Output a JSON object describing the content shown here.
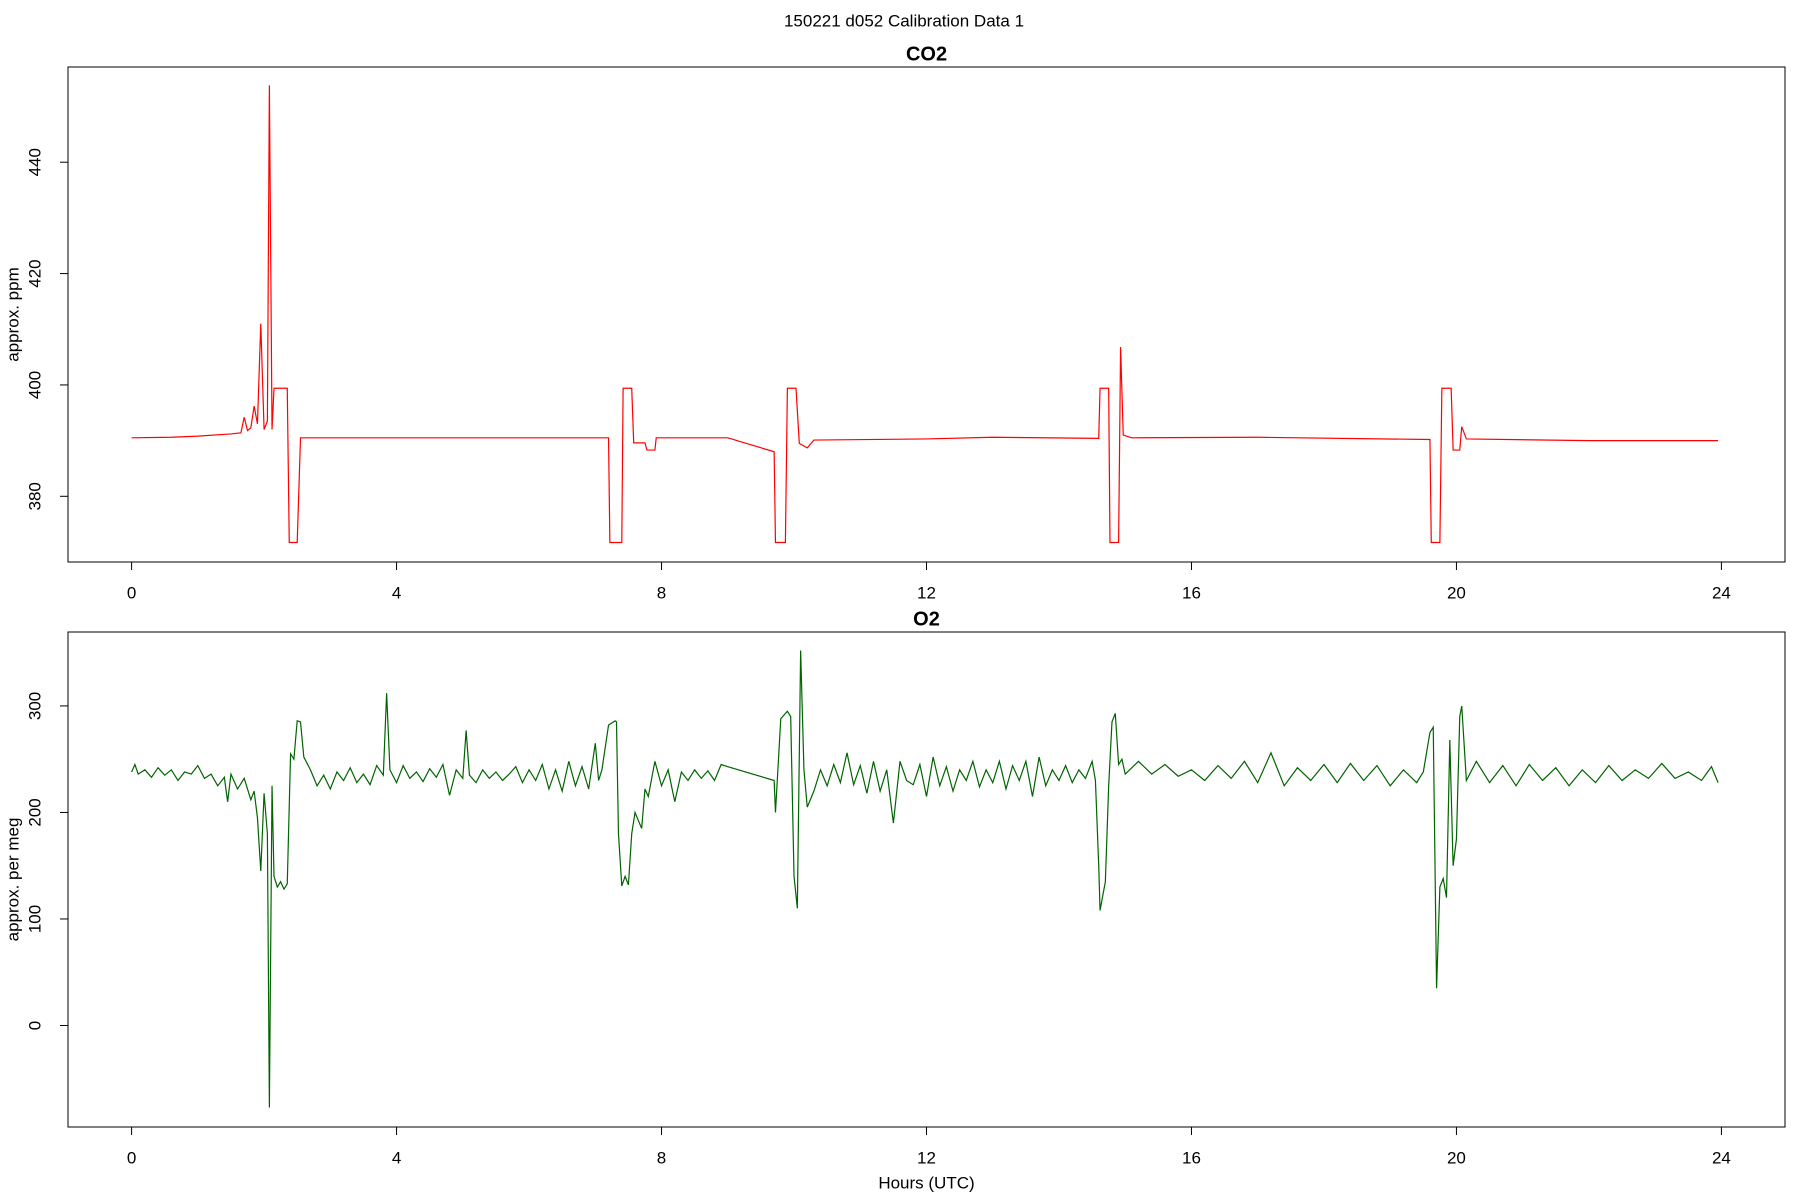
{
  "title": "150221   d052   Calibration Data 1",
  "chart_data": [
    {
      "type": "line",
      "title": "CO2",
      "ylabel": "approx. ppm",
      "color": "#ff0000",
      "xlim": [
        -0.96,
        24.96
      ],
      "xticks": [
        0,
        4,
        8,
        12,
        16,
        20,
        24
      ],
      "ylim": [
        368.2,
        457.1
      ],
      "yticks": [
        380,
        400,
        420,
        440
      ],
      "x": [
        0,
        0.6,
        1.0,
        1.5,
        1.65,
        1.7,
        1.75,
        1.8,
        1.85,
        1.9,
        1.95,
        2.0,
        2.05,
        2.08,
        2.12,
        2.15,
        2.35,
        2.38,
        2.5,
        2.55,
        4.0,
        6.0,
        7.2,
        7.22,
        7.4,
        7.42,
        7.55,
        7.58,
        7.75,
        7.78,
        7.9,
        7.92,
        9.0,
        9.7,
        9.72,
        9.87,
        9.9,
        10.03,
        10.08,
        10.2,
        10.3,
        12.0,
        13.0,
        14.6,
        14.62,
        14.75,
        14.77,
        14.9,
        14.93,
        14.97,
        15.1,
        17.0,
        19.6,
        19.62,
        19.75,
        19.78,
        19.92,
        19.95,
        20.05,
        20.08,
        20.15,
        22.0,
        23.95
      ],
      "values": [
        390.5,
        390.6,
        390.8,
        391.2,
        391.4,
        394.2,
        391.8,
        392.3,
        396.2,
        393.0,
        411.0,
        392.0,
        393.5,
        453.8,
        392.0,
        399.4,
        399.4,
        371.7,
        371.7,
        390.5,
        390.5,
        390.5,
        390.5,
        371.7,
        371.7,
        399.4,
        399.4,
        389.6,
        389.6,
        388.3,
        388.3,
        390.5,
        390.5,
        388.0,
        371.7,
        371.7,
        399.4,
        399.4,
        389.5,
        388.7,
        390.1,
        390.3,
        390.6,
        390.4,
        399.4,
        399.4,
        371.7,
        371.7,
        406.8,
        391.0,
        390.5,
        390.6,
        390.2,
        371.7,
        371.7,
        399.4,
        399.4,
        388.3,
        388.3,
        392.5,
        390.3,
        390.0,
        390.0
      ]
    },
    {
      "type": "line",
      "title": "O2",
      "ylabel": "approx. per meg",
      "xlabel": "Hours (UTC)",
      "color": "#006400",
      "xlim": [
        -0.96,
        24.96
      ],
      "xticks": [
        0,
        4,
        8,
        12,
        16,
        20,
        24
      ],
      "ylim": [
        -95.3,
        369.4
      ],
      "yticks": [
        0,
        100,
        200,
        300
      ],
      "x": [
        0,
        0.05,
        0.1,
        0.2,
        0.3,
        0.4,
        0.5,
        0.6,
        0.7,
        0.8,
        0.9,
        1.0,
        1.1,
        1.2,
        1.3,
        1.4,
        1.45,
        1.5,
        1.6,
        1.7,
        1.8,
        1.85,
        1.9,
        1.95,
        2.0,
        2.05,
        2.08,
        2.12,
        2.15,
        2.2,
        2.25,
        2.3,
        2.35,
        2.4,
        2.45,
        2.5,
        2.55,
        2.6,
        2.7,
        2.8,
        2.9,
        3.0,
        3.1,
        3.2,
        3.3,
        3.4,
        3.5,
        3.6,
        3.7,
        3.8,
        3.85,
        3.9,
        4.0,
        4.1,
        4.2,
        4.3,
        4.4,
        4.5,
        4.6,
        4.7,
        4.8,
        4.9,
        5.0,
        5.05,
        5.1,
        5.2,
        5.3,
        5.4,
        5.5,
        5.6,
        5.7,
        5.8,
        5.9,
        6.0,
        6.1,
        6.2,
        6.3,
        6.4,
        6.5,
        6.6,
        6.7,
        6.8,
        6.9,
        7.0,
        7.05,
        7.1,
        7.2,
        7.3,
        7.32,
        7.35,
        7.4,
        7.45,
        7.5,
        7.55,
        7.6,
        7.7,
        7.75,
        7.8,
        7.9,
        8.0,
        8.1,
        8.2,
        8.3,
        8.4,
        8.5,
        8.6,
        8.7,
        8.8,
        8.9,
        9.0,
        9.7,
        9.72,
        9.8,
        9.9,
        9.95,
        10.0,
        10.05,
        10.1,
        10.15,
        10.2,
        10.3,
        10.4,
        10.5,
        10.6,
        10.7,
        10.8,
        10.9,
        11.0,
        11.1,
        11.2,
        11.3,
        11.4,
        11.5,
        11.6,
        11.7,
        11.8,
        11.9,
        12.0,
        12.1,
        12.2,
        12.3,
        12.4,
        12.5,
        12.6,
        12.7,
        12.8,
        12.9,
        13.0,
        13.1,
        13.2,
        13.3,
        13.4,
        13.5,
        13.6,
        13.7,
        13.8,
        13.9,
        14.0,
        14.1,
        14.2,
        14.3,
        14.4,
        14.5,
        14.55,
        14.6,
        14.62,
        14.7,
        14.75,
        14.8,
        14.85,
        14.9,
        14.95,
        15.0,
        15.2,
        15.4,
        15.6,
        15.8,
        16.0,
        16.2,
        16.4,
        16.6,
        16.8,
        17.0,
        17.2,
        17.4,
        17.6,
        17.8,
        18.0,
        18.2,
        18.4,
        18.6,
        18.8,
        19.0,
        19.2,
        19.4,
        19.5,
        19.6,
        19.65,
        19.7,
        19.75,
        19.8,
        19.85,
        19.9,
        19.95,
        20.0,
        20.05,
        20.08,
        20.15,
        20.3,
        20.5,
        20.7,
        20.9,
        21.1,
        21.3,
        21.5,
        21.7,
        21.9,
        22.1,
        22.3,
        22.5,
        22.7,
        22.9,
        23.1,
        23.3,
        23.5,
        23.7,
        23.85,
        23.95
      ],
      "values": [
        238,
        245,
        236,
        240,
        233,
        242,
        235,
        240,
        230,
        238,
        236,
        244,
        232,
        236,
        225,
        233,
        210,
        236,
        222,
        232,
        212,
        220,
        195,
        145,
        218,
        180,
        -77,
        225,
        140,
        130,
        135,
        128,
        133,
        255,
        250,
        286,
        285,
        252,
        240,
        225,
        235,
        222,
        238,
        230,
        242,
        228,
        236,
        226,
        244,
        235,
        312,
        240,
        228,
        244,
        232,
        238,
        229,
        241,
        233,
        245,
        216,
        240,
        232,
        277,
        235,
        228,
        240,
        232,
        238,
        230,
        236,
        243,
        228,
        240,
        230,
        245,
        222,
        240,
        220,
        248,
        225,
        243,
        222,
        265,
        230,
        240,
        282,
        286,
        285,
        180,
        131,
        140,
        132,
        180,
        200,
        185,
        222,
        215,
        248,
        225,
        240,
        210,
        238,
        230,
        240,
        232,
        239,
        230,
        245,
        243,
        230,
        200,
        288,
        295,
        290,
        140,
        110,
        352,
        240,
        205,
        220,
        240,
        225,
        245,
        228,
        256,
        226,
        244,
        218,
        248,
        220,
        240,
        190,
        248,
        230,
        226,
        245,
        215,
        252,
        225,
        243,
        220,
        240,
        230,
        248,
        224,
        240,
        228,
        248,
        222,
        244,
        230,
        248,
        215,
        252,
        225,
        240,
        230,
        244,
        228,
        240,
        232,
        248,
        230,
        150,
        108,
        135,
        225,
        285,
        293,
        245,
        250,
        236,
        248,
        236,
        245,
        234,
        240,
        230,
        244,
        232,
        248,
        228,
        256,
        225,
        242,
        230,
        245,
        228,
        246,
        230,
        244,
        225,
        240,
        228,
        238,
        275,
        280,
        35,
        130,
        138,
        120,
        268,
        150,
        175,
        290,
        300,
        230,
        248,
        228,
        244,
        225,
        245,
        230,
        242,
        225,
        240,
        228,
        244,
        230,
        240,
        232,
        246,
        232,
        238,
        230,
        243,
        228
      ]
    }
  ]
}
